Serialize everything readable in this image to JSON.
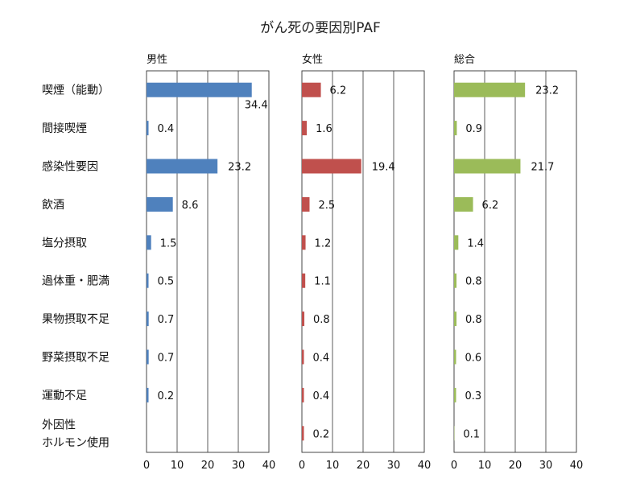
{
  "chart_data": {
    "type": "bar",
    "orientation": "horizontal",
    "title": "がん死の要因別PAF",
    "categories": [
      "喫煙（能動）",
      "間接喫煙",
      "感染性要因",
      "飲酒",
      "塩分摂取",
      "過体重・肥満",
      "果物摂取不足",
      "野菜摂取不足",
      "運動不足",
      "外因性\nホルモン使用"
    ],
    "xlim": [
      0,
      40
    ],
    "xticks": [
      0,
      10,
      20,
      30,
      40
    ],
    "grid": true,
    "panels": [
      {
        "name": "男性",
        "color": "#4f81bd",
        "values": [
          34.4,
          0.4,
          23.2,
          8.6,
          1.5,
          0.5,
          0.7,
          0.7,
          0.2,
          null
        ],
        "labels": [
          "34.4",
          "0.4",
          "23.2",
          "8.6",
          "1.5",
          "0.5",
          "0.7",
          "0.7",
          "0.2",
          ""
        ]
      },
      {
        "name": "女性",
        "color": "#c0504d",
        "values": [
          6.2,
          1.6,
          19.4,
          2.5,
          1.2,
          1.1,
          0.8,
          0.4,
          0.4,
          0.2
        ],
        "labels": [
          "6.2",
          "1.6",
          "19.4",
          "2.5",
          "1.2",
          "1.1",
          "0.8",
          "0.4",
          "0.4",
          "0.2"
        ]
      },
      {
        "name": "総合",
        "color": "#9bbb59",
        "values": [
          23.2,
          0.9,
          21.7,
          6.2,
          1.4,
          0.8,
          0.8,
          0.6,
          0.3,
          0.1
        ],
        "labels": [
          "23.2",
          "0.9",
          "21.7",
          "6.2",
          "1.4",
          "0.8",
          "0.8",
          "0.6",
          "0.3",
          "0.1"
        ]
      }
    ]
  }
}
